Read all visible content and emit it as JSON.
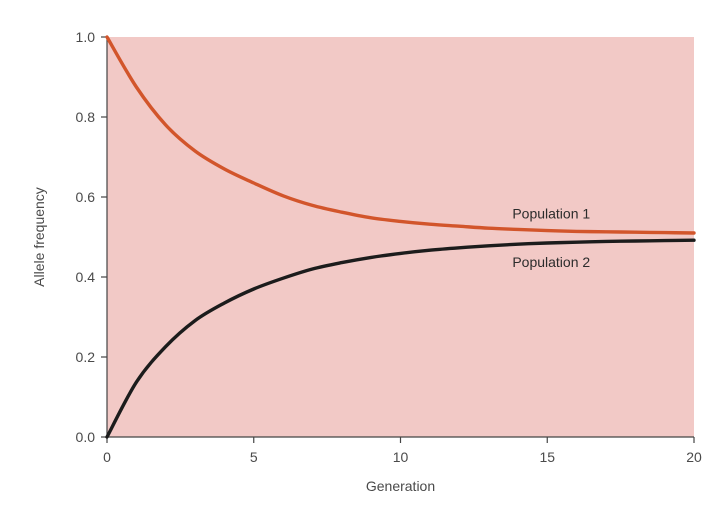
{
  "chart_data": {
    "type": "line",
    "title": "",
    "xlabel": "Generation",
    "ylabel": "Allele frequency",
    "xlim": [
      0,
      20
    ],
    "ylim": [
      0,
      1.0
    ],
    "x_ticks": [
      0,
      5,
      10,
      15,
      20
    ],
    "y_ticks": [
      0.0,
      0.2,
      0.4,
      0.6,
      0.8,
      1.0
    ],
    "x_tick_labels": [
      "0",
      "5",
      "10",
      "15",
      "20"
    ],
    "y_tick_labels": [
      "0.0",
      "0.2",
      "0.4",
      "0.6",
      "0.8",
      "1.0"
    ],
    "grid": false,
    "legend": "inline labels near line ends",
    "background_color": "#f2c9c6",
    "series": [
      {
        "name": "Population 1",
        "color": "#d2552b",
        "x": [
          0,
          1,
          2,
          3,
          4,
          5,
          6,
          7,
          8,
          9,
          10,
          11,
          12,
          13,
          14,
          15,
          16,
          17,
          18,
          19,
          20
        ],
        "y": [
          1.0,
          0.875,
          0.78,
          0.715,
          0.67,
          0.635,
          0.603,
          0.579,
          0.562,
          0.548,
          0.539,
          0.532,
          0.527,
          0.522,
          0.519,
          0.516,
          0.514,
          0.513,
          0.512,
          0.511,
          0.51
        ]
      },
      {
        "name": "Population 2",
        "color": "#1c1c1c",
        "x": [
          0,
          1,
          2,
          3,
          4,
          5,
          6,
          7,
          8,
          9,
          10,
          11,
          12,
          13,
          14,
          15,
          16,
          17,
          18,
          19,
          20
        ],
        "y": [
          0.0,
          0.137,
          0.226,
          0.291,
          0.335,
          0.37,
          0.397,
          0.42,
          0.436,
          0.449,
          0.459,
          0.467,
          0.473,
          0.478,
          0.482,
          0.485,
          0.487,
          0.489,
          0.49,
          0.491,
          0.492
        ]
      }
    ]
  }
}
